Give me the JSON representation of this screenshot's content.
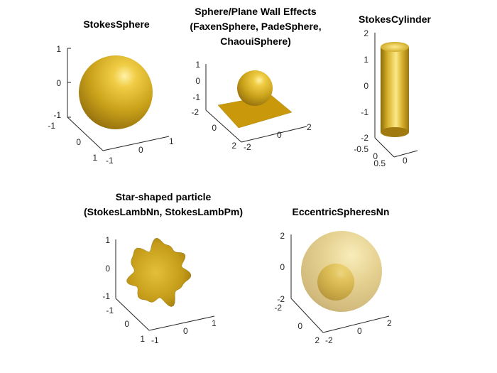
{
  "panels": {
    "p1": {
      "title": [
        "StokesSphere"
      ],
      "ticks": {
        "z": [
          "1",
          "0",
          "-1"
        ],
        "y": [
          "-1",
          "0",
          "1"
        ],
        "x": [
          "-1",
          "0",
          "1"
        ]
      }
    },
    "p2": {
      "title": [
        "Sphere/Plane Wall Effects",
        "(FaxenSphere, PadeSphere,",
        "ChaouiSphere)"
      ],
      "ticks": {
        "z": [
          "1",
          "0",
          "-1"
        ],
        "y": [
          "-2",
          "0",
          "2"
        ],
        "x": [
          "-2",
          "0",
          "2"
        ]
      }
    },
    "p3": {
      "title": [
        "StokesCylinder"
      ],
      "ticks": {
        "z": [
          "2",
          "1",
          "0",
          "-1",
          "-2"
        ],
        "y": [
          "-0.5",
          "0",
          "0.5"
        ],
        "x": [
          "0"
        ]
      }
    },
    "p4": {
      "title": [
        "Star-shaped particle",
        "(StokesLambNn, StokesLambPm)"
      ],
      "ticks": {
        "z": [
          "1",
          "0",
          "-1"
        ],
        "y": [
          "-1",
          "0",
          "1"
        ],
        "x": [
          "-1",
          "0",
          "1"
        ]
      }
    },
    "p5": {
      "title": [
        "EccentricSpheresNn"
      ],
      "ticks": {
        "z": [
          "2",
          "0",
          "-2"
        ],
        "y": [
          "-2",
          "0",
          "2"
        ],
        "x": [
          "-2",
          "0",
          "2"
        ]
      }
    }
  },
  "colors": {
    "gold": "#c9a21a",
    "gold_light": "#fbe88a",
    "gold_dark": "#6e5206",
    "plane": "#c9990b",
    "axis": "#262626",
    "background": "#ffffff"
  }
}
